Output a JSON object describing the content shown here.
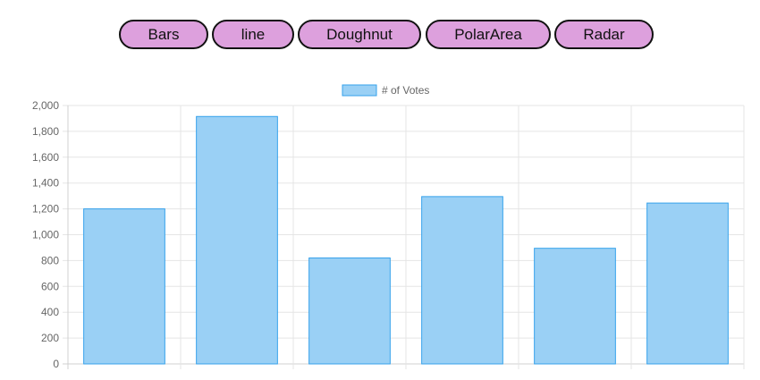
{
  "toolbar": {
    "buttons": [
      {
        "label": "Bars"
      },
      {
        "label": "line"
      },
      {
        "label": "Doughnut"
      },
      {
        "label": "PolarArea"
      },
      {
        "label": "Radar"
      }
    ],
    "button_color": "#dda0dd",
    "button_border_color": "#111111"
  },
  "chart_data": {
    "type": "bar",
    "categories": [
      "",
      "",
      "",
      "",
      "",
      ""
    ],
    "series": [
      {
        "name": "# of Votes",
        "values": [
          1200,
          1915,
          820,
          1295,
          895,
          1245
        ]
      }
    ],
    "ylim": [
      0,
      2000
    ],
    "yticks": [
      "0",
      "200",
      "400",
      "600",
      "800",
      "1,000",
      "1,200",
      "1,400",
      "1,600",
      "1,800",
      "2,000"
    ],
    "grid": true,
    "legend": "top-center",
    "fill_color": "#9ad0f5",
    "border_color": "#36a2eb",
    "grid_color": "#e5e5e5",
    "label_color": "#666666"
  }
}
